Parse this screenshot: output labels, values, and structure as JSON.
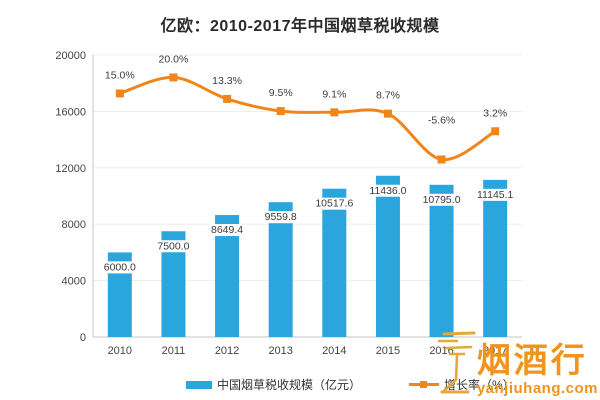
{
  "title": "亿欧：2010-2017年中国烟草税收规模",
  "colors": {
    "bar": "#2AA6DC",
    "line": "#F0861A",
    "value_label": "#3b3b3b",
    "axis_text": "#444444",
    "grid": "#ededed",
    "axis_line": "#c6c6c6",
    "watermark": "#F0941D",
    "watermark_icon": "#E6A83D"
  },
  "chart_data": {
    "type": "bar",
    "subtype": "combo-bar-line",
    "title": "亿欧：2010-2017年中国烟草税收规模",
    "categories": [
      "2010",
      "2011",
      "2012",
      "2013",
      "2014",
      "2015",
      "2016",
      "2017"
    ],
    "series": [
      {
        "name": "中国烟草税收规模（亿元）",
        "type": "bar",
        "axis": "left",
        "values": [
          6000.0,
          7500.0,
          8649.4,
          9559.8,
          10517.6,
          11436.0,
          10795.0,
          11145.1
        ],
        "labels": [
          "6000.0",
          "7500.0",
          "8649.4",
          "9559.8",
          "10517.6",
          "11436.0",
          "10795.0",
          "11145.1"
        ]
      },
      {
        "name": "增长率（%）",
        "type": "line",
        "axis": "right-hidden",
        "values": [
          15.0,
          20.0,
          13.3,
          9.5,
          9.1,
          8.7,
          -5.6,
          3.2
        ],
        "labels": [
          "15.0%",
          "20.0%",
          "13.3%",
          "9.5%",
          "9.1%",
          "8.7%",
          "-5.6%",
          "3.2%"
        ]
      }
    ],
    "xlabel": "",
    "ylabel": "",
    "ylim": [
      0,
      20000
    ],
    "yticks": [
      "0",
      "4000",
      "8000",
      "12000",
      "16000",
      "20000"
    ],
    "y2lim": [
      -61,
      27
    ],
    "grid": true,
    "legend_position": "bottom"
  },
  "legend": {
    "bar_label": "中国烟草税收规模（亿元）",
    "line_label": "增长率（%）"
  },
  "watermark": {
    "brand": "烟酒行",
    "site": "yanjiuhang.com",
    "icon": "wine-glass-icon"
  }
}
